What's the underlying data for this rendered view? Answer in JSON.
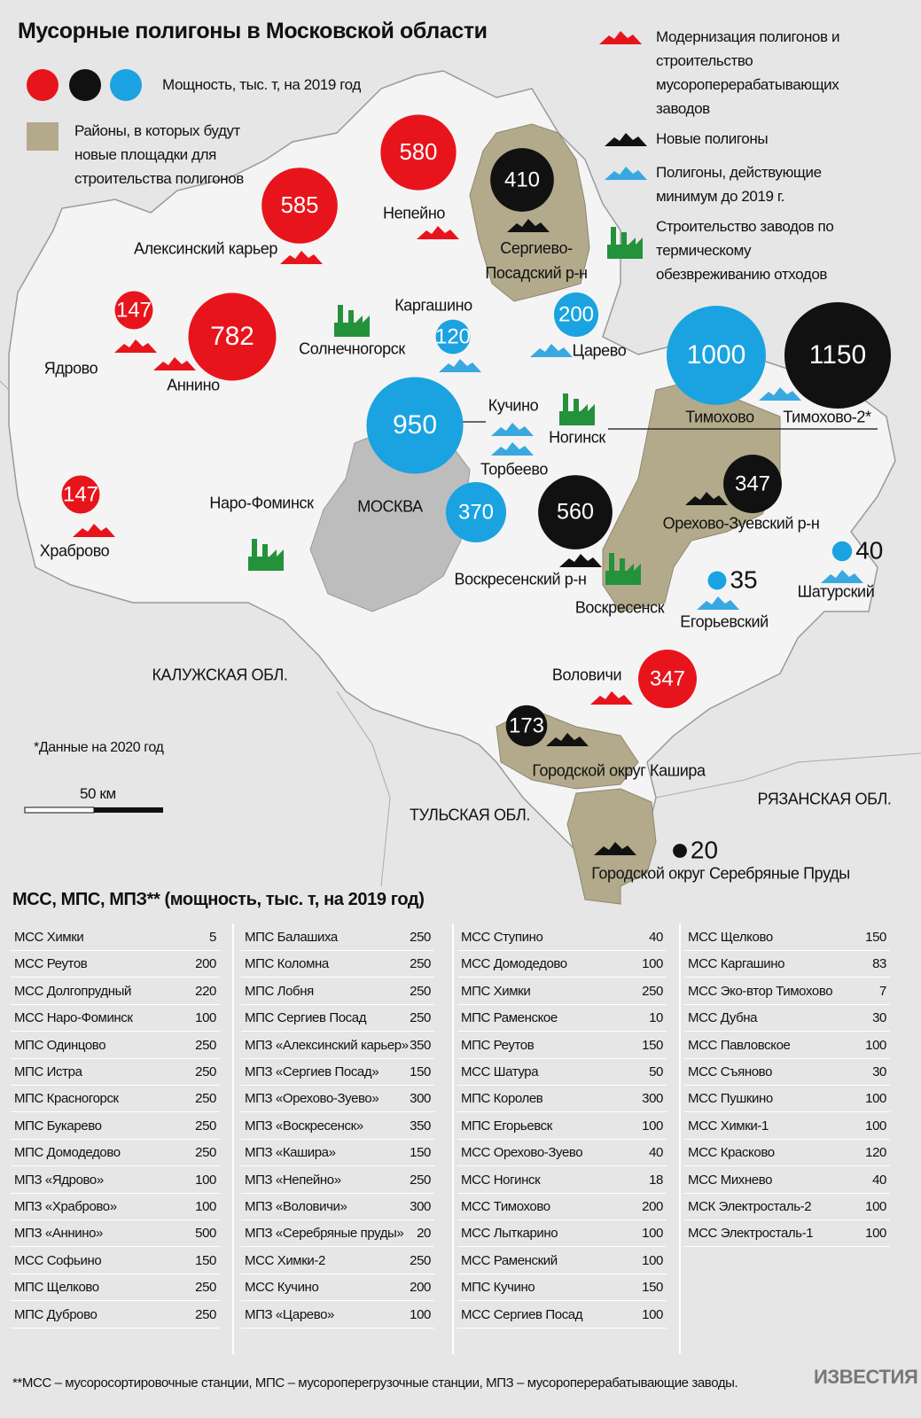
{
  "title": "Мусорные полигоны в Московской области",
  "legend": {
    "capacity": "Мощность, тыс. т, на 2019 год",
    "districts": "Районы, в которых будут новые площадки для строительства полигонов",
    "modernization": "Модернизация полигонов и строительство мусороперерабатывающих заводов",
    "new": "Новые полигоны",
    "existing": "Полигоны, действующие минимум до 2019 г.",
    "thermal": "Строительство заводов по термическому обезвреживанию отходов"
  },
  "circles": [
    {
      "value": 585,
      "color": "#e8141c"
    },
    {
      "value": 580,
      "color": "#e8141c"
    },
    {
      "value": 410,
      "color": "#111111"
    },
    {
      "value": 147,
      "color": "#e8141c"
    },
    {
      "value": 782,
      "color": "#e8141c"
    },
    {
      "value": 120,
      "color": "#1aa3e0"
    },
    {
      "value": 200,
      "color": "#1aa3e0"
    },
    {
      "value": 1000,
      "color": "#1aa3e0"
    },
    {
      "value": 1150,
      "color": "#111111"
    },
    {
      "value": 950,
      "color": "#1aa3e0"
    },
    {
      "value": 147,
      "color": "#e8141c"
    },
    {
      "value": 370,
      "color": "#1aa3e0"
    },
    {
      "value": 560,
      "color": "#111111"
    },
    {
      "value": 347,
      "color": "#111111"
    },
    {
      "value": 35,
      "color": "#1aa3e0"
    },
    {
      "value": 40,
      "color": "#1aa3e0"
    },
    {
      "value": 347,
      "color": "#e8141c"
    },
    {
      "value": 173,
      "color": "#111111"
    },
    {
      "value": 20,
      "color": "#111111"
    }
  ],
  "places": [
    "Алексинский карьер",
    "Непейно",
    "Сергиево-Посадский р-н",
    "Ядрово",
    "Аннино",
    "Солнечногорск",
    "Каргашино",
    "Царево",
    "Тимохово",
    "Тимохово-2*",
    "Кучино",
    "Ногинск",
    "Торбеево",
    "Храброво",
    "Наро-Фоминск",
    "МОСКВА",
    "Орехово-Зуевский р-н",
    "Воскресенский р-н",
    "Воскресенск",
    "Егорьевский",
    "Шатурский",
    "Воловичи",
    "Городской округ Кашира",
    "Городской округ Серебряные Пруды"
  ],
  "regions": [
    "КАЛУЖСКАЯ ОБЛ.",
    "ТУЛЬСКАЯ ОБЛ.",
    "РЯЗАНСКАЯ  ОБЛ."
  ],
  "note": "*Данные на 2020 год",
  "scale": "50 км",
  "table": {
    "title": "МСС, МПС, МПЗ** (мощность, тыс. т, на 2019 год)",
    "columns": [
      [
        [
          "МСС Химки",
          5
        ],
        [
          "МСС Реутов",
          200
        ],
        [
          "МСС Долгопрудный",
          220
        ],
        [
          "МСС Наро-Фоминск",
          100
        ],
        [
          "МПС Одинцово",
          250
        ],
        [
          "МПС Истра",
          250
        ],
        [
          "МПС Красногорск",
          250
        ],
        [
          "МПС Букарево",
          250
        ],
        [
          "МПС Домодедово",
          250
        ],
        [
          "МПЗ «Ядрово»",
          100
        ],
        [
          "МПЗ «Храброво»",
          100
        ],
        [
          "МПЗ «Аннино»",
          500
        ],
        [
          "МСС Софьино",
          150
        ],
        [
          "МПС Щелково",
          250
        ],
        [
          "МПС Дуброво",
          250
        ]
      ],
      [
        [
          "МПС Балашиха",
          250
        ],
        [
          "МПС Коломна",
          250
        ],
        [
          "МПС Лобня",
          250
        ],
        [
          "МПС Сергиев Посад",
          250
        ],
        [
          "МПЗ «Алексинский карьер»",
          350
        ],
        [
          "МПЗ «Сергиев Посад»",
          150
        ],
        [
          "МПЗ «Орехово-Зуево»",
          300
        ],
        [
          "МПЗ «Воскресенск»",
          350
        ],
        [
          "МПЗ «Кашира»",
          150
        ],
        [
          "МПЗ «Непейно»",
          250
        ],
        [
          "МПЗ «Воловичи»",
          300
        ],
        [
          "МПЗ «Серебряные пруды»",
          20
        ],
        [
          "МСС Химки-2",
          250
        ],
        [
          "МСС Кучино",
          200
        ],
        [
          "МПЗ «Царево»",
          100
        ]
      ],
      [
        [
          "МСС Ступино",
          40
        ],
        [
          "МСС Домодедово",
          100
        ],
        [
          "МПС Химки",
          250
        ],
        [
          "МПС Раменское",
          10
        ],
        [
          "МПС Реутов",
          150
        ],
        [
          "МСС Шатура",
          50
        ],
        [
          "МПС Королев",
          300
        ],
        [
          "МПС Егорьевск",
          100
        ],
        [
          "МСС Орехово-Зуево",
          40
        ],
        [
          "МСС Ногинск",
          18
        ],
        [
          "МСС Тимохово",
          200
        ],
        [
          "МСС Лыткарино",
          100
        ],
        [
          "МСС Раменский",
          100
        ],
        [
          "МПС Кучино",
          150
        ],
        [
          "МСС Сергиев Посад",
          100
        ]
      ],
      [
        [
          "МСС Щелково",
          150
        ],
        [
          "МСС Каргашино",
          83
        ],
        [
          "МСС Эко-втор Тимохово",
          7
        ],
        [
          "МСС Дубна",
          30
        ],
        [
          "МСС Павловское",
          100
        ],
        [
          "МСС Съяново",
          30
        ],
        [
          "МСС Пушкино",
          100
        ],
        [
          "МСС Химки-1",
          100
        ],
        [
          "МСС Красково",
          120
        ],
        [
          "МСС Михнево",
          40
        ],
        [
          "МСК Электросталь-2",
          100
        ],
        [
          "МСС Электросталь-1",
          100
        ]
      ]
    ]
  },
  "footnote": "**МСС – мусоросортировочные станции, МПС – мусороперегрузочные станции, МПЗ – мусороперерабатывающие заводы.",
  "brand": "ИЗВЕСТИЯ"
}
